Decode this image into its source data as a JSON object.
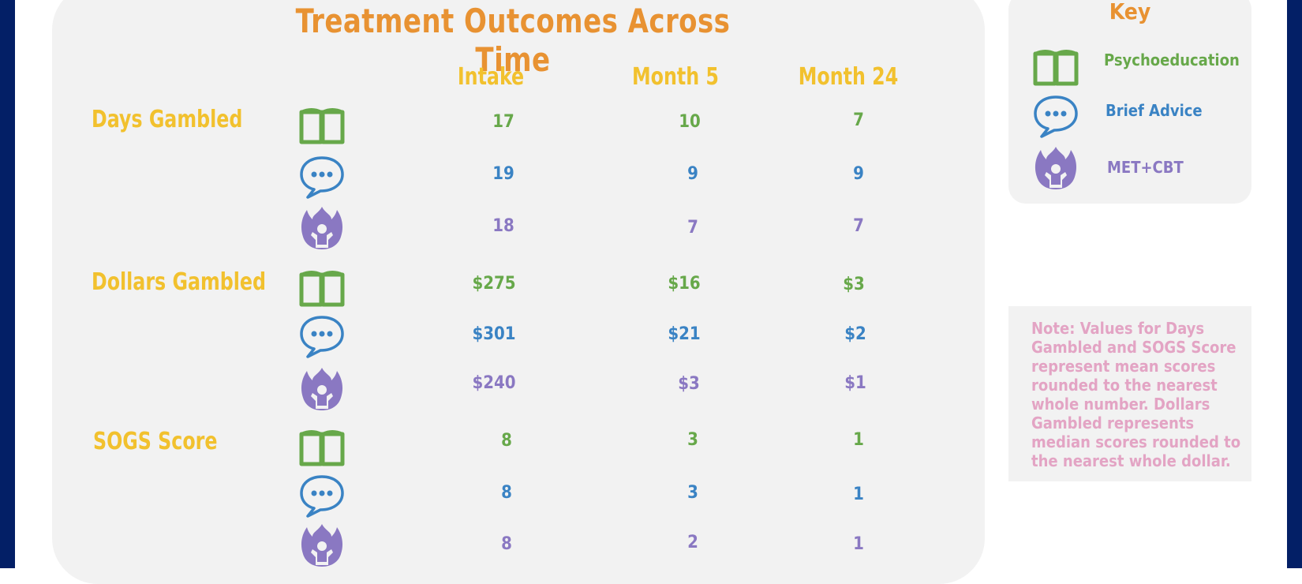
{
  "chart_data": {
    "type": "table",
    "title": "Treatment Outcomes Across Time",
    "columns": [
      "Intake",
      "Month 5",
      "Month 24"
    ],
    "rows": [
      {
        "measure": "Days Gambled",
        "values": [
          {
            "group": "Psychoeducation",
            "cells": [
              "17",
              "10",
              "7"
            ]
          },
          {
            "group": "Brief Advice",
            "cells": [
              "19",
              "9",
              "9"
            ]
          },
          {
            "group": "MET+CBT",
            "cells": [
              "18",
              "7",
              "7"
            ]
          }
        ]
      },
      {
        "measure": "Dollars Gambled",
        "values": [
          {
            "group": "Psychoeducation",
            "cells": [
              "$275",
              "$16",
              "$3"
            ]
          },
          {
            "group": "Brief Advice",
            "cells": [
              "$301",
              "$21",
              "$2"
            ]
          },
          {
            "group": "MET+CBT",
            "cells": [
              "$240",
              "$3",
              "$1"
            ]
          }
        ]
      },
      {
        "measure": "SOGS Score",
        "values": [
          {
            "group": "Psychoeducation",
            "cells": [
              "8",
              "3",
              "1"
            ]
          },
          {
            "group": "Brief Advice",
            "cells": [
              "8",
              "3",
              "1"
            ]
          },
          {
            "group": "MET+CBT",
            "cells": [
              "8",
              "2",
              "1"
            ]
          }
        ]
      }
    ]
  },
  "key": {
    "title": "Key",
    "items": [
      {
        "label": "Psychoeducation",
        "icon": "book-icon",
        "color": "#67a84a"
      },
      {
        "label": "Brief Advice",
        "icon": "speech-bubble-icon",
        "color": "#3a83c4"
      },
      {
        "label": "MET+CBT",
        "icon": "flame-person-icon",
        "color": "#8a78c2"
      }
    ]
  },
  "note": "Note: Values for Days Gambled and SOGS Score represent mean scores rounded to the nearest whole number.  Dollars Gambled represents median scores rounded to the nearest whole dollar.",
  "colors": {
    "frame": "#031f66",
    "title": "#e89232",
    "headers": "#f2c12e",
    "note": "#e3a4c4",
    "panel": "#f2f2f2"
  }
}
